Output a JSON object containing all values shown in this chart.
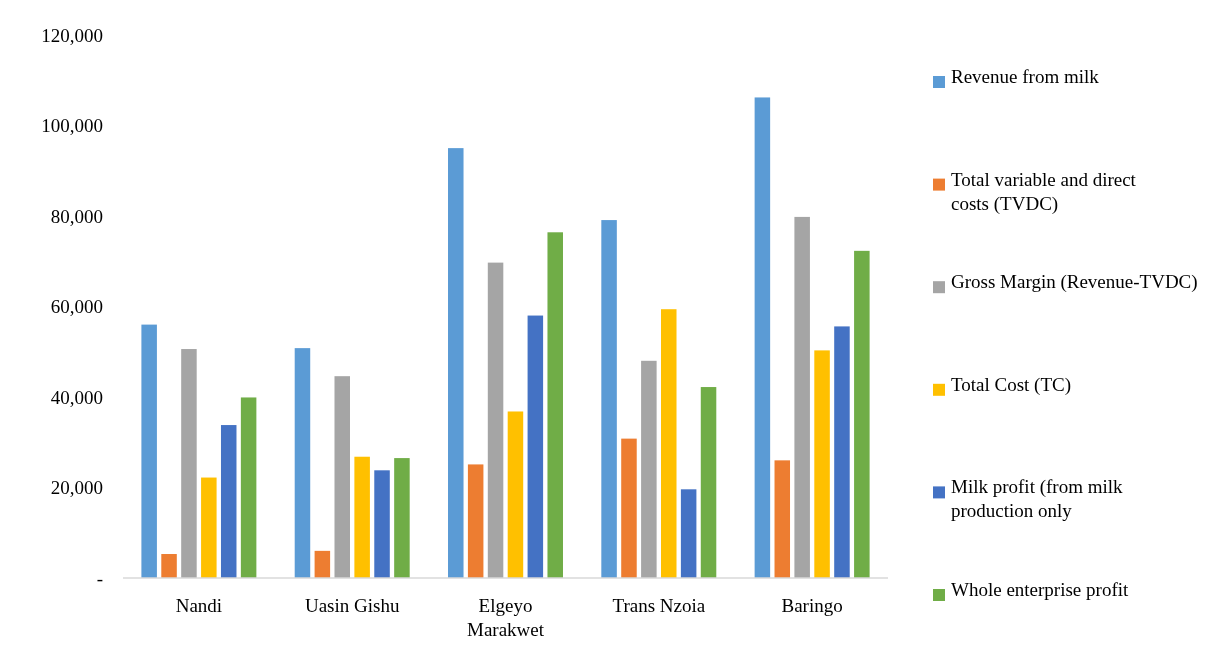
{
  "chart_data": {
    "type": "bar",
    "categories": [
      "Nandi",
      "Uasin Gishu",
      "Elgeyo Marakwet",
      "Trans Nzoia",
      "Baringo"
    ],
    "series": [
      {
        "name": "Revenue from milk",
        "color": "#5b9bd5",
        "values": [
          56000,
          50800,
          95000,
          79100,
          106200
        ]
      },
      {
        "name": "Total variable and direct costs (TVDC)",
        "color": "#ed7d31",
        "values": [
          5300,
          6000,
          25100,
          30800,
          26000
        ]
      },
      {
        "name": "Gross Margin (Revenue-TVDC)",
        "color": "#a5a5a5",
        "values": [
          50600,
          44600,
          69700,
          48000,
          79800
        ]
      },
      {
        "name": "Total Cost (TC)",
        "color": "#ffc000",
        "values": [
          22200,
          26800,
          36800,
          59400,
          50300
        ]
      },
      {
        "name": "Milk profit (from milk production only",
        "color": "#4472c4",
        "values": [
          33800,
          23800,
          58000,
          19600,
          55600
        ]
      },
      {
        "name": "Whole enterprise profit",
        "color": "#70ad47",
        "values": [
          39900,
          26500,
          76400,
          42200,
          72300
        ]
      }
    ],
    "ylim": [
      0,
      120000
    ],
    "yticks": [
      {
        "value": 0,
        "label": "-"
      },
      {
        "value": 20000,
        "label": "20,000"
      },
      {
        "value": 40000,
        "label": "40,000"
      },
      {
        "value": 60000,
        "label": "60,000"
      },
      {
        "value": 80000,
        "label": "80,000"
      },
      {
        "value": 100000,
        "label": "100,000"
      },
      {
        "value": 120000,
        "label": "120,000"
      }
    ],
    "grid": false,
    "legend": "right"
  }
}
